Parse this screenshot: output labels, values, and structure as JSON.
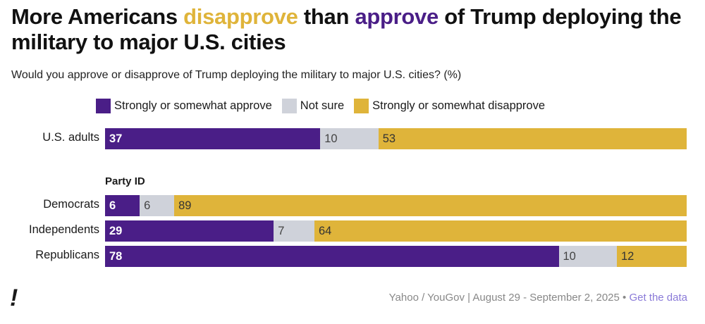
{
  "chart_data": {
    "type": "bar",
    "orientation": "horizontal-stacked",
    "title_parts": [
      "More Americans ",
      "disapprove",
      " than ",
      "approve",
      " of Trump deploying the military to major U.S. cities"
    ],
    "subtitle": "Would you approve or disapprove of Trump deploying the military to major U.S. cities? (%)",
    "legend": [
      "Strongly or somewhat approve",
      "Not sure",
      "Strongly or somewhat disapprove"
    ],
    "colors": [
      "#4a1e87",
      "#cfd2da",
      "#dfb43a"
    ],
    "text_colors": [
      "#ffffff",
      "#444444",
      "#333333"
    ],
    "group_label": "Party ID",
    "categories": [
      "U.S. adults",
      "Democrats",
      "Independents",
      "Republicans"
    ],
    "series": [
      {
        "name": "Strongly or somewhat approve",
        "values": [
          37,
          6,
          29,
          78
        ]
      },
      {
        "name": "Not sure",
        "values": [
          10,
          6,
          7,
          10
        ]
      },
      {
        "name": "Strongly or somewhat disapprove",
        "values": [
          53,
          89,
          64,
          12
        ]
      }
    ],
    "xlim": [
      0,
      100
    ]
  },
  "footer": {
    "logo": "!",
    "source": "Yahoo / YouGov | August 29 - September 2, 2025 • ",
    "link": "Get the data"
  }
}
